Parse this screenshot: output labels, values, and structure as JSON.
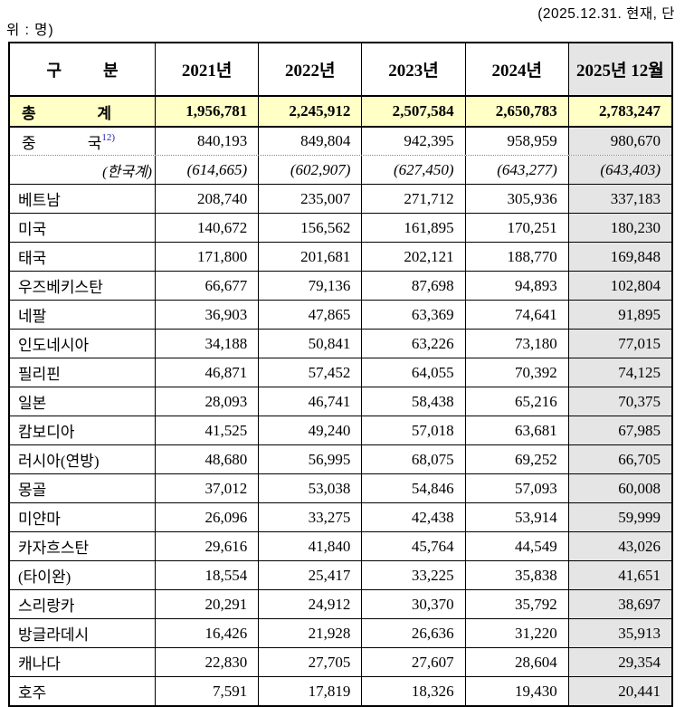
{
  "note": {
    "line1": "(2025.12.31. 현재, 단",
    "line2": "위 : 명)"
  },
  "colors": {
    "total_row_bg": "#ffffc6",
    "last_col_bg": "#e5e5e5",
    "footnote_blue": "#2222bb"
  },
  "table": {
    "header": {
      "category_left": "구",
      "category_right": "분",
      "years": [
        "2021년",
        "2022년",
        "2023년",
        "2024년",
        "2025년 12월"
      ]
    },
    "rows": [
      {
        "key": "total",
        "type": "total",
        "label_left": "총",
        "label_right": "계",
        "values": [
          "1,956,781",
          "2,245,912",
          "2,507,584",
          "2,650,783",
          "2,783,247"
        ]
      },
      {
        "key": "china",
        "type": "china",
        "label_left": "중",
        "label_right": "국",
        "sup": "12)",
        "values": [
          "840,193",
          "849,804",
          "942,395",
          "958,959",
          "980,670"
        ]
      },
      {
        "key": "korean-chinese",
        "type": "korean",
        "label": "(한국계)",
        "values": [
          "(614,665)",
          "(602,907)",
          "(627,450)",
          "(643,277)",
          "(643,403)"
        ]
      },
      {
        "key": "vietnam",
        "type": "normal",
        "label": "베트남",
        "values": [
          "208,740",
          "235,007",
          "271,712",
          "305,936",
          "337,183"
        ]
      },
      {
        "key": "usa",
        "type": "normal",
        "label": "미국",
        "values": [
          "140,672",
          "156,562",
          "161,895",
          "170,251",
          "180,230"
        ]
      },
      {
        "key": "thailand",
        "type": "normal",
        "label": "태국",
        "values": [
          "171,800",
          "201,681",
          "202,121",
          "188,770",
          "169,848"
        ]
      },
      {
        "key": "uzbekistan",
        "type": "normal",
        "label": "우즈베키스탄",
        "values": [
          "66,677",
          "79,136",
          "87,698",
          "94,893",
          "102,804"
        ]
      },
      {
        "key": "nepal",
        "type": "normal",
        "label": "네팔",
        "values": [
          "36,903",
          "47,865",
          "63,369",
          "74,641",
          "91,895"
        ]
      },
      {
        "key": "indonesia",
        "type": "normal",
        "label": "인도네시아",
        "values": [
          "34,188",
          "50,841",
          "63,226",
          "73,180",
          "77,015"
        ]
      },
      {
        "key": "philippines",
        "type": "normal",
        "label": "필리핀",
        "values": [
          "46,871",
          "57,452",
          "64,055",
          "70,392",
          "74,125"
        ]
      },
      {
        "key": "japan",
        "type": "normal",
        "label": "일본",
        "values": [
          "28,093",
          "46,741",
          "58,438",
          "65,216",
          "70,375"
        ]
      },
      {
        "key": "cambodia",
        "type": "normal",
        "label": "캄보디아",
        "values": [
          "41,525",
          "49,240",
          "57,018",
          "63,681",
          "67,985"
        ]
      },
      {
        "key": "russia",
        "type": "normal",
        "label": "러시아(연방)",
        "values": [
          "48,680",
          "56,995",
          "68,075",
          "69,252",
          "66,705"
        ]
      },
      {
        "key": "mongolia",
        "type": "normal",
        "label": "몽골",
        "values": [
          "37,012",
          "53,038",
          "54,846",
          "57,093",
          "60,008"
        ]
      },
      {
        "key": "myanmar",
        "type": "normal",
        "label": "미얀마",
        "values": [
          "26,096",
          "33,275",
          "42,438",
          "53,914",
          "59,999"
        ]
      },
      {
        "key": "kazakhstan",
        "type": "normal",
        "label": "카자흐스탄",
        "values": [
          "29,616",
          "41,840",
          "45,764",
          "44,549",
          "43,026"
        ]
      },
      {
        "key": "taiwan",
        "type": "normal",
        "label": "(타이완)",
        "values": [
          "18,554",
          "25,417",
          "33,225",
          "35,838",
          "41,651"
        ]
      },
      {
        "key": "sri-lanka",
        "type": "normal",
        "label": "스리랑카",
        "values": [
          "20,291",
          "24,912",
          "30,370",
          "35,792",
          "38,697"
        ]
      },
      {
        "key": "bangladesh",
        "type": "normal",
        "label": "방글라데시",
        "values": [
          "16,426",
          "21,928",
          "26,636",
          "31,220",
          "35,913"
        ]
      },
      {
        "key": "canada",
        "type": "normal",
        "label": "캐나다",
        "values": [
          "22,830",
          "27,705",
          "27,607",
          "28,604",
          "29,354"
        ]
      },
      {
        "key": "australia",
        "type": "normal",
        "label": "호주",
        "values": [
          "7,591",
          "17,819",
          "18,326",
          "19,430",
          "20,441"
        ]
      }
    ]
  }
}
